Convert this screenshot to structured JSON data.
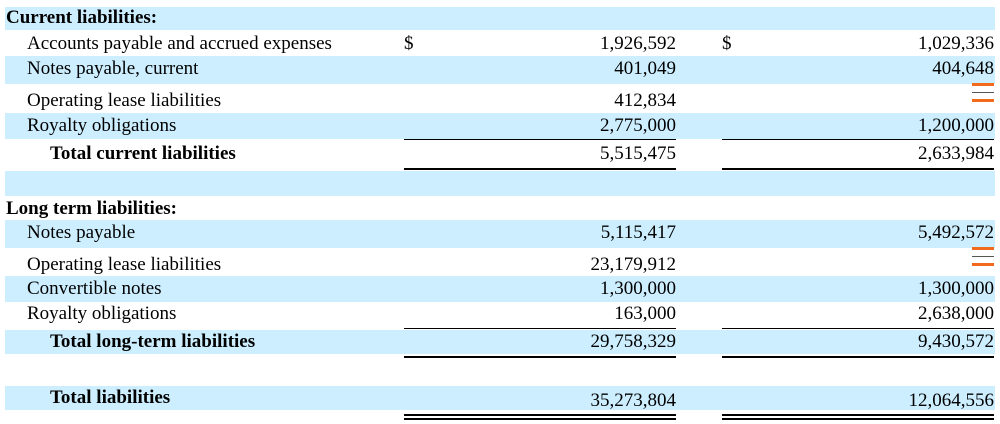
{
  "current": {
    "header": "Current liabilities:",
    "rows": [
      {
        "label": "Accounts payable and accrued expenses",
        "cur_sym": "$",
        "v1": "1,926,592",
        "prev_sym": "$",
        "v2": "1,029,336"
      },
      {
        "label": "Notes payable, current",
        "v1": "401,049",
        "v2": "404,648"
      },
      {
        "label": "Operating lease liabilities",
        "v1": "412,834",
        "v2": "—"
      },
      {
        "label": "Royalty obligations",
        "v1": "2,775,000",
        "v2": "1,200,000"
      }
    ],
    "total": {
      "label": "Total current liabilities",
      "v1": "5,515,475",
      "v2": "2,633,984"
    }
  },
  "longterm": {
    "header": "Long term liabilities:",
    "rows": [
      {
        "label": "Notes payable",
        "v1": "5,115,417",
        "v2": "5,492,572"
      },
      {
        "label": "Operating lease liabilities",
        "v1": "23,179,912",
        "v2": "—"
      },
      {
        "label": "Convertible notes",
        "v1": "1,300,000",
        "v2": "1,300,000"
      },
      {
        "label": "Royalty obligations",
        "v1": "163,000",
        "v2": "2,638,000"
      }
    ],
    "total": {
      "label": "Total long-term liabilities",
      "v1": "29,758,329",
      "v2": "9,430,572"
    }
  },
  "grand_total": {
    "label": "Total liabilities",
    "v1": "35,273,804",
    "v2": "12,064,556"
  }
}
